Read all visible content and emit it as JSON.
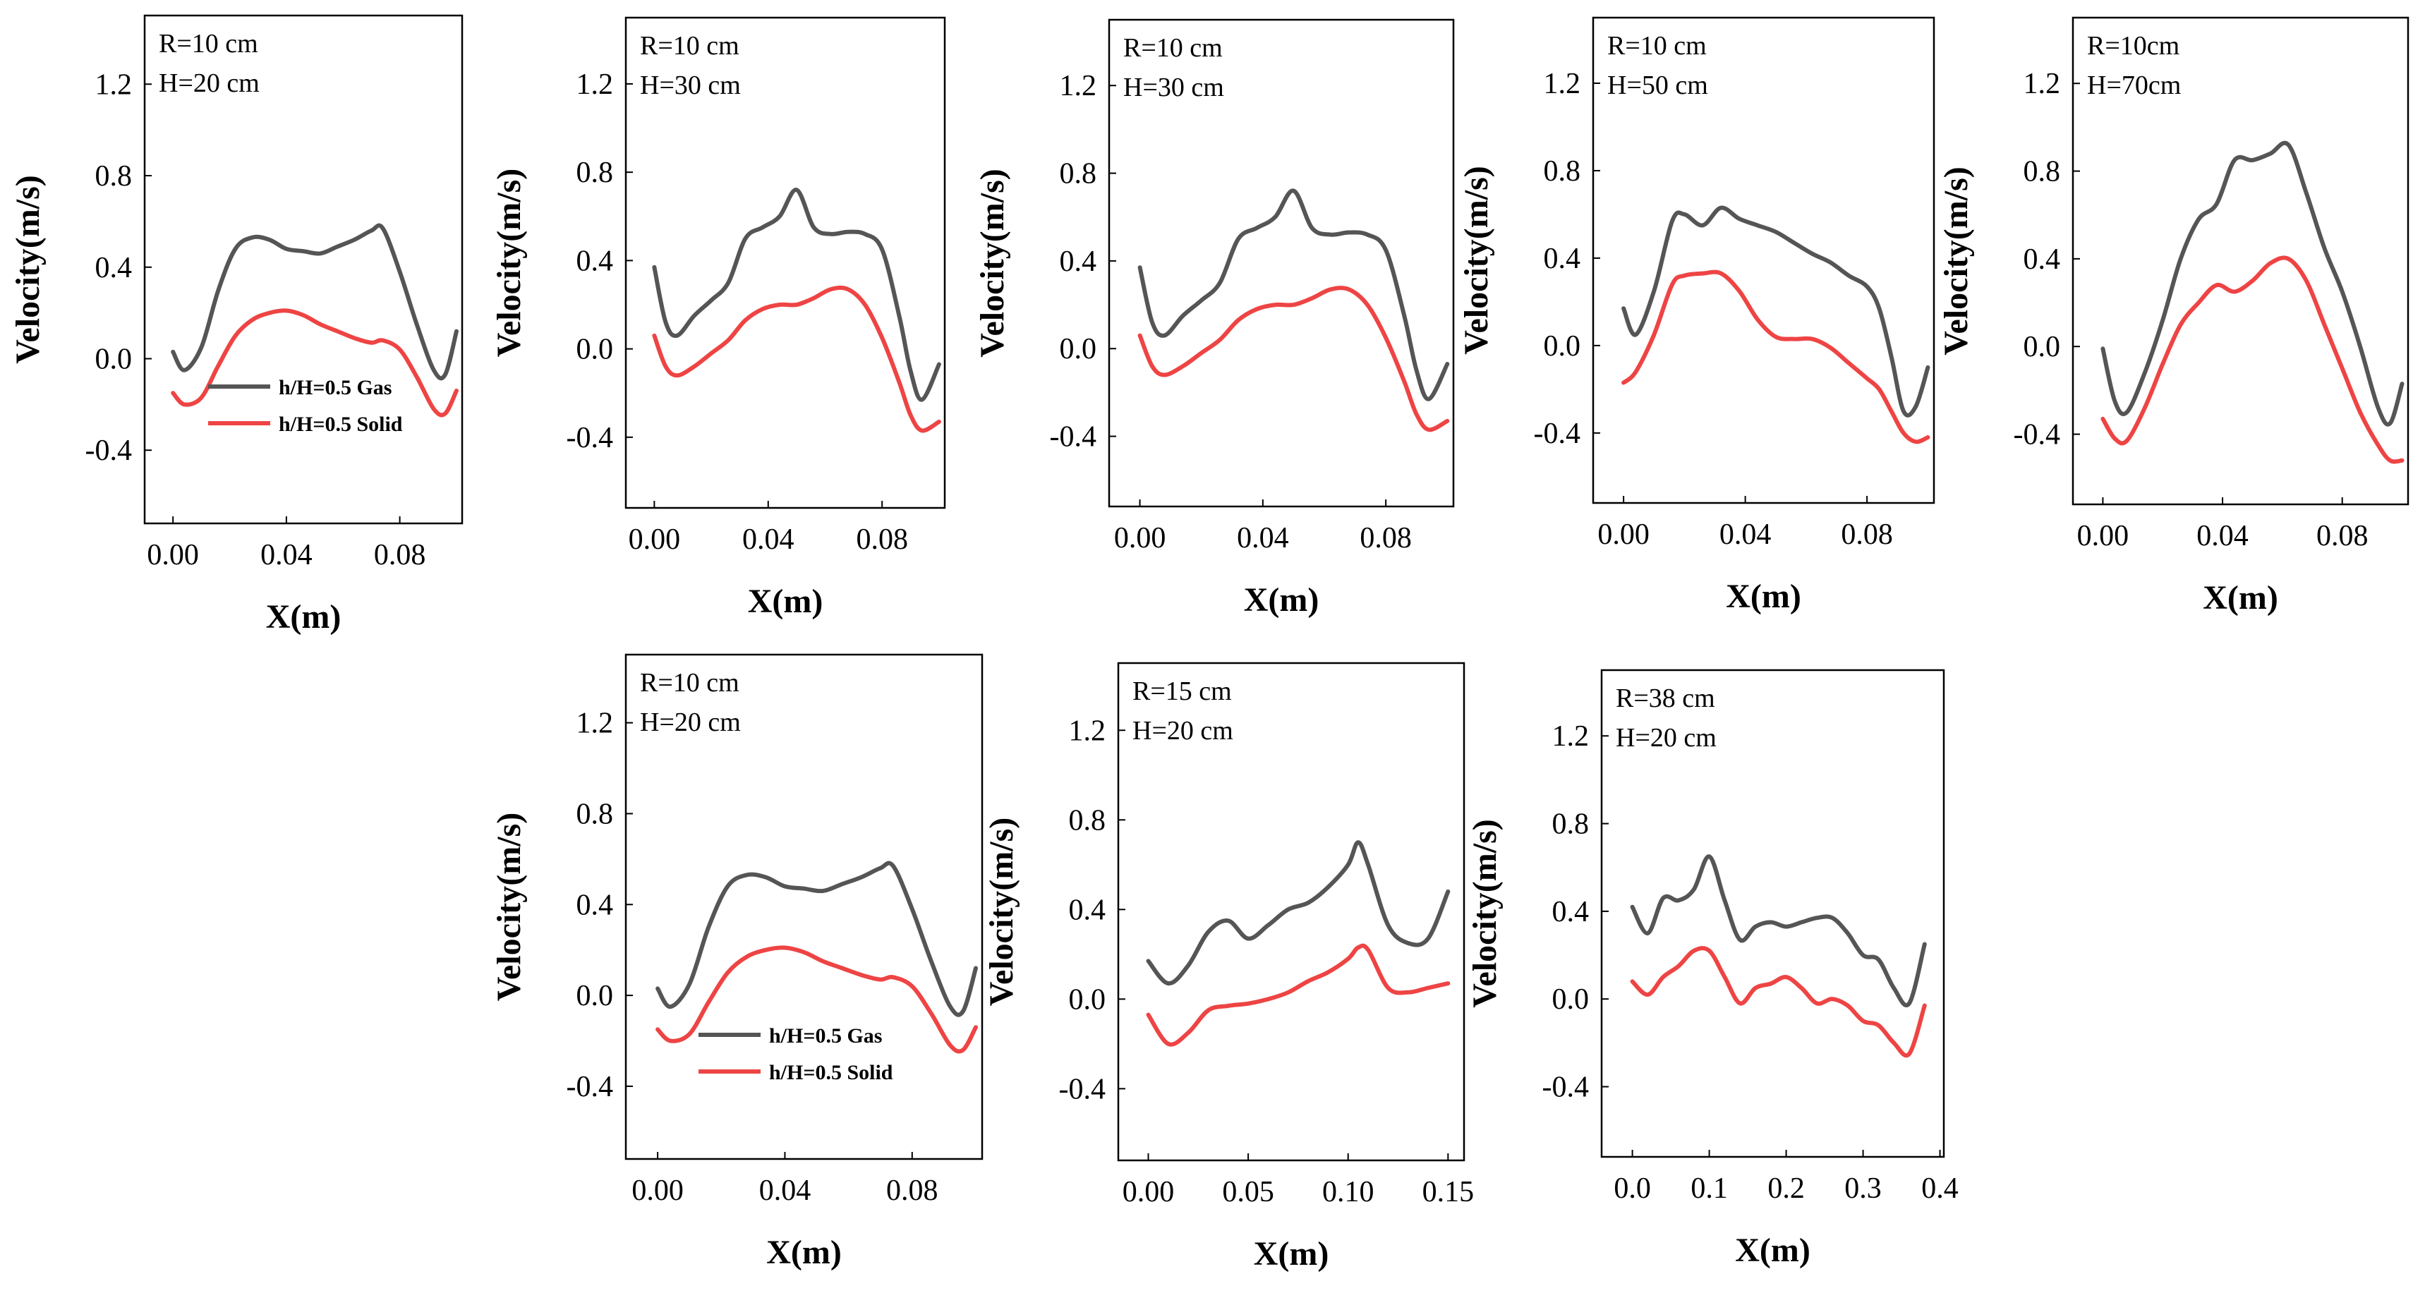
{
  "figure": {
    "colors": {
      "gas": "#555555",
      "solid": "#ee4444",
      "frame": "#000000"
    }
  },
  "chart_data": [
    {
      "type": "line",
      "annotations": [
        "R=10 cm",
        "H=20 cm"
      ],
      "xlabel": "X(m)",
      "ylabel": "Velocity(m/s)",
      "xlim": [
        -0.01,
        0.102
      ],
      "ylim": [
        -0.72,
        1.5
      ],
      "xticks": [
        "0.00",
        "0.04",
        "0.08"
      ],
      "xtick_values": [
        0,
        0.04,
        0.08
      ],
      "yticks": [
        "-0.4",
        "0.0",
        "0.4",
        "0.8",
        "1.2"
      ],
      "ytick_values": [
        -0.4,
        0,
        0.4,
        0.8,
        1.2
      ],
      "legend": {
        "entries": [
          "h/H=0.5 Gas",
          "h/H=0.5 Solid"
        ],
        "placement": "lower-left"
      },
      "series": [
        {
          "name": "h/H=0.5 Gas",
          "color": "#555555",
          "x": [
            0,
            0.004,
            0.01,
            0.016,
            0.022,
            0.028,
            0.034,
            0.04,
            0.046,
            0.052,
            0.058,
            0.064,
            0.07,
            0.074,
            0.08,
            0.086,
            0.092,
            0.096,
            0.1
          ],
          "y": [
            0.03,
            -0.05,
            0.05,
            0.3,
            0.48,
            0.53,
            0.52,
            0.48,
            0.47,
            0.46,
            0.49,
            0.52,
            0.56,
            0.57,
            0.38,
            0.15,
            -0.05,
            -0.07,
            0.12
          ]
        },
        {
          "name": "h/H=0.5 Solid",
          "color": "#ee4444",
          "x": [
            0,
            0.004,
            0.01,
            0.016,
            0.022,
            0.028,
            0.034,
            0.04,
            0.046,
            0.052,
            0.058,
            0.064,
            0.07,
            0.074,
            0.08,
            0.086,
            0.092,
            0.096,
            0.1
          ],
          "y": [
            -0.15,
            -0.2,
            -0.17,
            -0.03,
            0.1,
            0.17,
            0.2,
            0.21,
            0.19,
            0.15,
            0.12,
            0.09,
            0.07,
            0.08,
            0.04,
            -0.08,
            -0.22,
            -0.24,
            -0.14
          ]
        }
      ]
    },
    {
      "type": "line",
      "annotations": [
        "R=10 cm",
        "H=30 cm"
      ],
      "xlabel": "X(m)",
      "ylabel": "Velocity(m/s)",
      "xlim": [
        -0.01,
        0.102
      ],
      "ylim": [
        -0.72,
        1.5
      ],
      "xticks": [
        "0.00",
        "0.04",
        "0.08"
      ],
      "xtick_values": [
        0,
        0.04,
        0.08
      ],
      "yticks": [
        "-0.4",
        "0.0",
        "0.4",
        "0.8",
        "1.2"
      ],
      "ytick_values": [
        -0.4,
        0,
        0.4,
        0.8,
        1.2
      ],
      "series": [
        {
          "color": "#555555",
          "x": [
            0,
            0.004,
            0.008,
            0.014,
            0.02,
            0.026,
            0.032,
            0.038,
            0.044,
            0.05,
            0.056,
            0.062,
            0.068,
            0.074,
            0.08,
            0.086,
            0.09,
            0.094,
            0.1
          ],
          "y": [
            0.37,
            0.12,
            0.06,
            0.15,
            0.22,
            0.3,
            0.5,
            0.55,
            0.6,
            0.72,
            0.55,
            0.52,
            0.53,
            0.52,
            0.45,
            0.15,
            -0.1,
            -0.23,
            -0.07
          ]
        },
        {
          "color": "#ee4444",
          "x": [
            0,
            0.004,
            0.008,
            0.014,
            0.02,
            0.026,
            0.032,
            0.038,
            0.044,
            0.05,
            0.056,
            0.062,
            0.068,
            0.074,
            0.08,
            0.086,
            0.09,
            0.094,
            0.1
          ],
          "y": [
            0.06,
            -0.08,
            -0.12,
            -0.08,
            -0.02,
            0.04,
            0.13,
            0.18,
            0.2,
            0.2,
            0.23,
            0.27,
            0.27,
            0.2,
            0.05,
            -0.15,
            -0.3,
            -0.37,
            -0.33
          ]
        }
      ]
    },
    {
      "type": "line",
      "annotations": [
        "R=10 cm",
        "H=30 cm"
      ],
      "xlabel": "X(m)",
      "ylabel": "Velocity(m/s)",
      "xlim": [
        -0.01,
        0.102
      ],
      "ylim": [
        -0.72,
        1.5
      ],
      "xticks": [
        "0.00",
        "0.04",
        "0.08"
      ],
      "xtick_values": [
        0,
        0.04,
        0.08
      ],
      "yticks": [
        "-0.4",
        "0.0",
        "0.4",
        "0.8",
        "1.2"
      ],
      "ytick_values": [
        -0.4,
        0,
        0.4,
        0.8,
        1.2
      ],
      "series": [
        {
          "color": "#555555",
          "x": [
            0,
            0.004,
            0.008,
            0.014,
            0.02,
            0.026,
            0.032,
            0.038,
            0.044,
            0.05,
            0.056,
            0.062,
            0.068,
            0.074,
            0.08,
            0.086,
            0.09,
            0.094,
            0.1
          ],
          "y": [
            0.37,
            0.12,
            0.06,
            0.15,
            0.22,
            0.3,
            0.5,
            0.55,
            0.6,
            0.72,
            0.55,
            0.52,
            0.53,
            0.52,
            0.45,
            0.15,
            -0.1,
            -0.23,
            -0.07
          ]
        },
        {
          "color": "#ee4444",
          "x": [
            0,
            0.004,
            0.008,
            0.014,
            0.02,
            0.026,
            0.032,
            0.038,
            0.044,
            0.05,
            0.056,
            0.062,
            0.068,
            0.074,
            0.08,
            0.086,
            0.09,
            0.094,
            0.1
          ],
          "y": [
            0.06,
            -0.08,
            -0.12,
            -0.08,
            -0.02,
            0.04,
            0.13,
            0.18,
            0.2,
            0.2,
            0.23,
            0.27,
            0.27,
            0.2,
            0.05,
            -0.15,
            -0.3,
            -0.37,
            -0.33
          ]
        }
      ]
    },
    {
      "type": "line",
      "annotations": [
        "R=10 cm",
        "H=50 cm"
      ],
      "xlabel": "X(m)",
      "ylabel": "Velocity(m/s)",
      "xlim": [
        -0.01,
        0.102
      ],
      "ylim": [
        -0.72,
        1.5
      ],
      "xticks": [
        "0.00",
        "0.04",
        "0.08"
      ],
      "xtick_values": [
        0,
        0.04,
        0.08
      ],
      "yticks": [
        "-0.4",
        "0.0",
        "0.4",
        "0.8",
        "1.2"
      ],
      "ytick_values": [
        -0.4,
        0,
        0.4,
        0.8,
        1.2
      ],
      "series": [
        {
          "color": "#555555",
          "x": [
            0,
            0.004,
            0.01,
            0.016,
            0.02,
            0.026,
            0.032,
            0.038,
            0.044,
            0.05,
            0.056,
            0.062,
            0.068,
            0.074,
            0.08,
            0.084,
            0.088,
            0.092,
            0.096,
            0.1
          ],
          "y": [
            0.17,
            0.05,
            0.25,
            0.57,
            0.6,
            0.55,
            0.63,
            0.58,
            0.55,
            0.52,
            0.47,
            0.42,
            0.38,
            0.32,
            0.27,
            0.17,
            -0.05,
            -0.3,
            -0.28,
            -0.1
          ]
        },
        {
          "color": "#ee4444",
          "x": [
            0,
            0.004,
            0.01,
            0.016,
            0.02,
            0.026,
            0.032,
            0.038,
            0.044,
            0.05,
            0.056,
            0.062,
            0.068,
            0.074,
            0.08,
            0.084,
            0.088,
            0.092,
            0.096,
            0.1
          ],
          "y": [
            -0.17,
            -0.12,
            0.05,
            0.28,
            0.32,
            0.33,
            0.33,
            0.25,
            0.12,
            0.04,
            0.03,
            0.03,
            -0.01,
            -0.08,
            -0.15,
            -0.2,
            -0.3,
            -0.4,
            -0.44,
            -0.42
          ]
        }
      ]
    },
    {
      "type": "line",
      "annotations": [
        "R=10cm",
        "H=70cm"
      ],
      "xlabel": "X(m)",
      "ylabel": "Velocity(m/s)",
      "xlim": [
        -0.01,
        0.102
      ],
      "ylim": [
        -0.72,
        1.5
      ],
      "xticks": [
        "0.00",
        "0.04",
        "0.08"
      ],
      "xtick_values": [
        0,
        0.04,
        0.08
      ],
      "yticks": [
        "-0.4",
        "0.0",
        "0.4",
        "0.8",
        "1.2"
      ],
      "ytick_values": [
        -0.4,
        0,
        0.4,
        0.8,
        1.2
      ],
      "series": [
        {
          "color": "#555555",
          "x": [
            0,
            0.004,
            0.008,
            0.014,
            0.02,
            0.026,
            0.032,
            0.038,
            0.044,
            0.05,
            0.056,
            0.062,
            0.068,
            0.074,
            0.08,
            0.086,
            0.092,
            0.096,
            0.1
          ],
          "y": [
            -0.01,
            -0.25,
            -0.3,
            -0.12,
            0.12,
            0.4,
            0.58,
            0.65,
            0.85,
            0.85,
            0.88,
            0.92,
            0.7,
            0.45,
            0.25,
            0.0,
            -0.28,
            -0.35,
            -0.17
          ]
        },
        {
          "color": "#ee4444",
          "x": [
            0,
            0.004,
            0.008,
            0.014,
            0.02,
            0.026,
            0.032,
            0.038,
            0.044,
            0.05,
            0.056,
            0.062,
            0.068,
            0.074,
            0.08,
            0.086,
            0.092,
            0.096,
            0.1
          ],
          "y": [
            -0.33,
            -0.42,
            -0.43,
            -0.28,
            -0.08,
            0.1,
            0.2,
            0.28,
            0.25,
            0.3,
            0.38,
            0.4,
            0.3,
            0.1,
            -0.1,
            -0.3,
            -0.45,
            -0.52,
            -0.52
          ]
        }
      ]
    },
    {
      "type": "line",
      "annotations": [
        "R=10 cm",
        "H=20 cm"
      ],
      "xlabel": "X(m)",
      "ylabel": "Velocity(m/s)",
      "xlim": [
        -0.01,
        0.102
      ],
      "ylim": [
        -0.72,
        1.5
      ],
      "xticks": [
        "0.00",
        "0.04",
        "0.08"
      ],
      "xtick_values": [
        0,
        0.04,
        0.08
      ],
      "yticks": [
        "-0.4",
        "0.0",
        "0.4",
        "0.8",
        "1.2"
      ],
      "ytick_values": [
        -0.4,
        0,
        0.4,
        0.8,
        1.2
      ],
      "legend": {
        "entries": [
          "h/H=0.5 Gas",
          "h/H=0.5 Solid"
        ],
        "placement": "lower-center"
      },
      "series": [
        {
          "name": "h/H=0.5 Gas",
          "color": "#555555",
          "x": [
            0,
            0.004,
            0.01,
            0.016,
            0.022,
            0.028,
            0.034,
            0.04,
            0.046,
            0.052,
            0.058,
            0.064,
            0.07,
            0.074,
            0.08,
            0.086,
            0.092,
            0.096,
            0.1
          ],
          "y": [
            0.03,
            -0.05,
            0.05,
            0.3,
            0.48,
            0.53,
            0.52,
            0.48,
            0.47,
            0.46,
            0.49,
            0.52,
            0.56,
            0.57,
            0.38,
            0.15,
            -0.05,
            -0.07,
            0.12
          ]
        },
        {
          "name": "h/H=0.5 Solid",
          "color": "#ee4444",
          "x": [
            0,
            0.004,
            0.01,
            0.016,
            0.022,
            0.028,
            0.034,
            0.04,
            0.046,
            0.052,
            0.058,
            0.064,
            0.07,
            0.074,
            0.08,
            0.086,
            0.092,
            0.096,
            0.1
          ],
          "y": [
            -0.15,
            -0.2,
            -0.17,
            -0.03,
            0.1,
            0.17,
            0.2,
            0.21,
            0.19,
            0.15,
            0.12,
            0.09,
            0.07,
            0.08,
            0.04,
            -0.08,
            -0.22,
            -0.24,
            -0.14
          ]
        }
      ]
    },
    {
      "type": "line",
      "annotations": [
        "R=15 cm",
        "H=20 cm"
      ],
      "xlabel": "X(m)",
      "ylabel": "Velocity(m/s)",
      "xlim": [
        -0.015,
        0.158
      ],
      "ylim": [
        -0.72,
        1.5
      ],
      "xticks": [
        "0.00",
        "0.05",
        "0.10",
        "0.15"
      ],
      "xtick_values": [
        0,
        0.05,
        0.1,
        0.15
      ],
      "yticks": [
        "-0.4",
        "0.0",
        "0.4",
        "0.8",
        "1.2"
      ],
      "ytick_values": [
        -0.4,
        0,
        0.4,
        0.8,
        1.2
      ],
      "series": [
        {
          "color": "#555555",
          "x": [
            0,
            0.01,
            0.02,
            0.03,
            0.04,
            0.05,
            0.06,
            0.07,
            0.08,
            0.09,
            0.1,
            0.105,
            0.11,
            0.12,
            0.13,
            0.14,
            0.15
          ],
          "y": [
            0.17,
            0.07,
            0.15,
            0.3,
            0.35,
            0.27,
            0.33,
            0.4,
            0.43,
            0.5,
            0.6,
            0.7,
            0.6,
            0.33,
            0.25,
            0.27,
            0.48
          ]
        },
        {
          "color": "#ee4444",
          "x": [
            0,
            0.01,
            0.02,
            0.03,
            0.04,
            0.05,
            0.06,
            0.07,
            0.08,
            0.09,
            0.1,
            0.105,
            0.11,
            0.12,
            0.13,
            0.14,
            0.15
          ],
          "y": [
            -0.07,
            -0.2,
            -0.15,
            -0.05,
            -0.03,
            -0.02,
            0.0,
            0.03,
            0.08,
            0.12,
            0.18,
            0.23,
            0.22,
            0.05,
            0.03,
            0.05,
            0.07
          ]
        }
      ]
    },
    {
      "type": "line",
      "annotations": [
        "R=38 cm",
        "H=20 cm"
      ],
      "xlabel": "X(m)",
      "ylabel": "Velocity(m/s)",
      "xlim": [
        -0.04,
        0.405
      ],
      "ylim": [
        -0.72,
        1.5
      ],
      "xticks": [
        "0.0",
        "0.1",
        "0.2",
        "0.3",
        "0.4"
      ],
      "xtick_values": [
        0,
        0.1,
        0.2,
        0.3,
        0.4
      ],
      "yticks": [
        "-0.4",
        "0.0",
        "0.4",
        "0.8",
        "1.2"
      ],
      "ytick_values": [
        -0.4,
        0,
        0.4,
        0.8,
        1.2
      ],
      "series": [
        {
          "color": "#555555",
          "x": [
            0,
            0.02,
            0.04,
            0.06,
            0.08,
            0.1,
            0.12,
            0.14,
            0.16,
            0.18,
            0.2,
            0.22,
            0.24,
            0.26,
            0.28,
            0.3,
            0.32,
            0.34,
            0.36,
            0.38
          ],
          "y": [
            0.42,
            0.3,
            0.46,
            0.45,
            0.5,
            0.65,
            0.45,
            0.27,
            0.33,
            0.35,
            0.33,
            0.35,
            0.37,
            0.37,
            0.3,
            0.2,
            0.18,
            0.05,
            -0.02,
            0.25
          ]
        },
        {
          "color": "#ee4444",
          "x": [
            0,
            0.02,
            0.04,
            0.06,
            0.08,
            0.1,
            0.12,
            0.14,
            0.16,
            0.18,
            0.2,
            0.22,
            0.24,
            0.26,
            0.28,
            0.3,
            0.32,
            0.34,
            0.36,
            0.38
          ],
          "y": [
            0.08,
            0.02,
            0.1,
            0.15,
            0.22,
            0.22,
            0.1,
            -0.02,
            0.05,
            0.07,
            0.1,
            0.05,
            -0.02,
            0.0,
            -0.03,
            -0.1,
            -0.12,
            -0.2,
            -0.25,
            -0.03
          ]
        }
      ]
    }
  ]
}
